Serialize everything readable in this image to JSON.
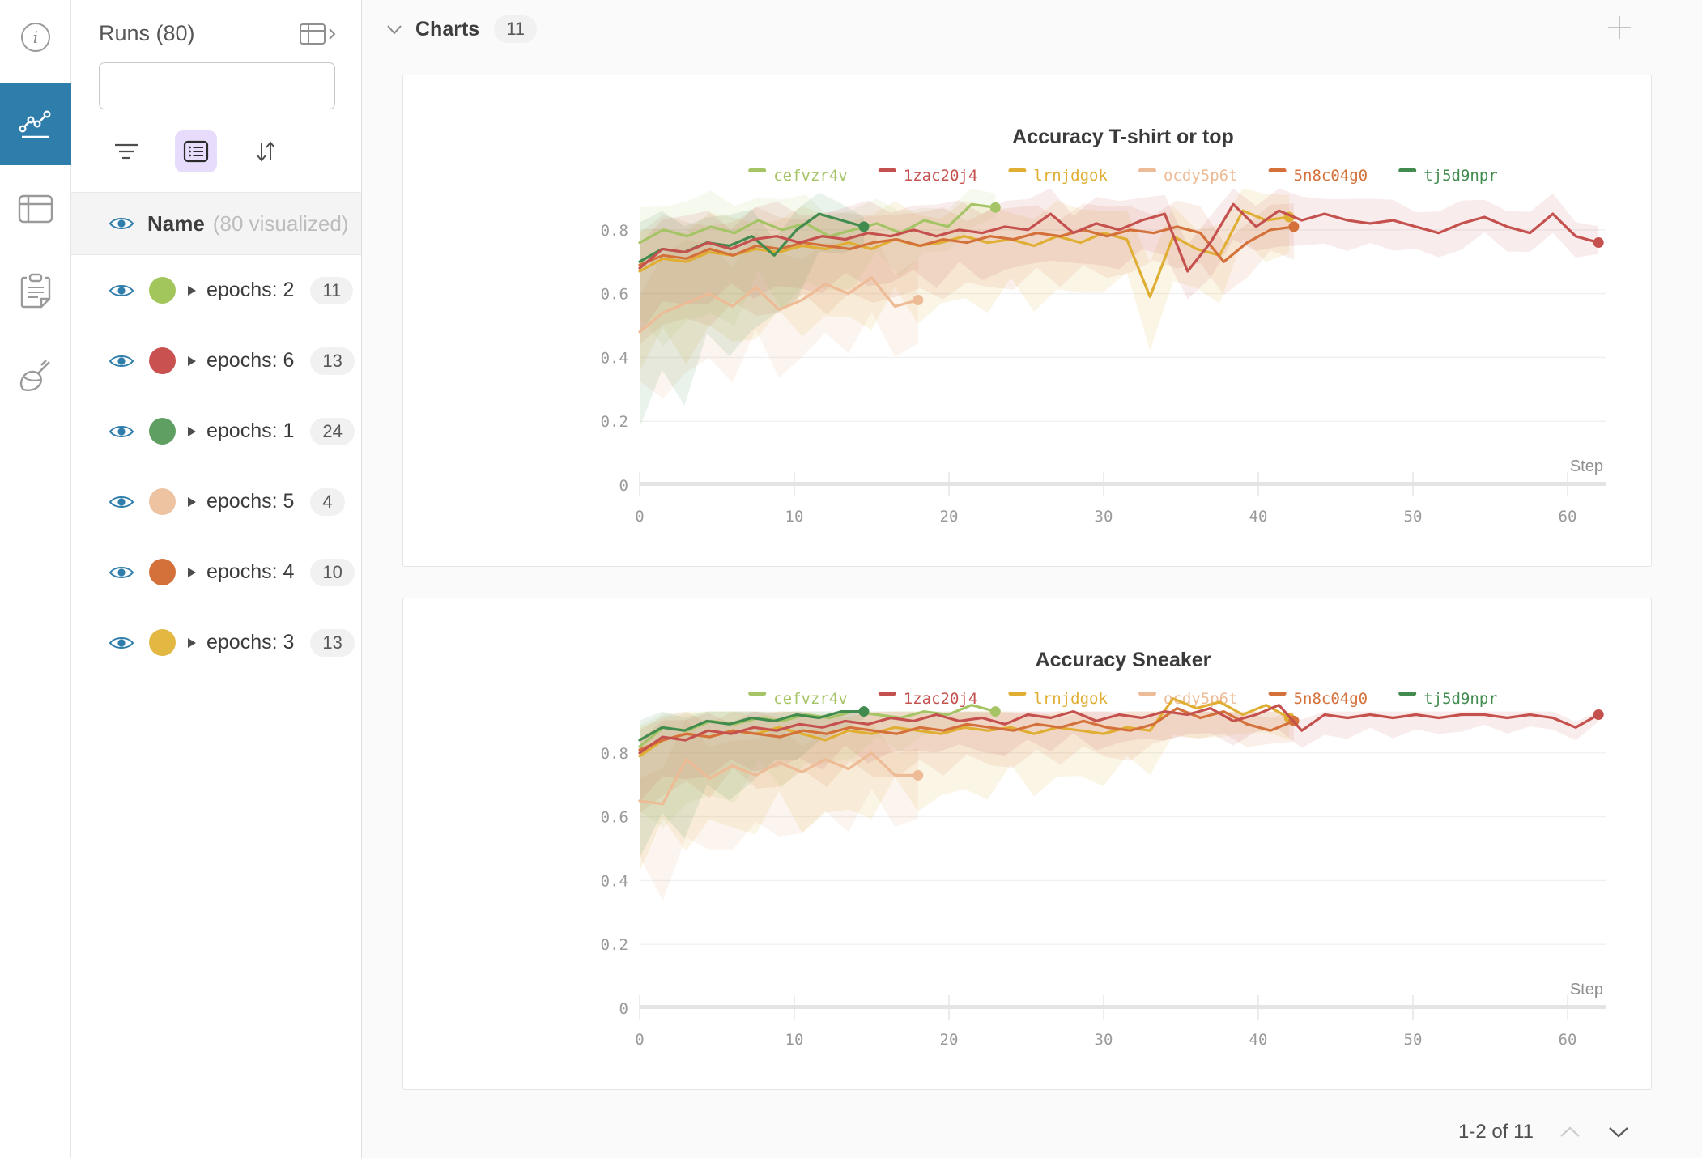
{
  "colors": {
    "accent_blue": "#2e7daa",
    "selected_control_bg": "#e7dcfb",
    "card_bg": "#ffffff",
    "main_bg": "#fafafa"
  },
  "icons": {
    "rail": [
      "info-icon",
      "line-chart-icon",
      "table-icon",
      "clipboard-icon",
      "broom-icon"
    ],
    "rail_selected": "line-chart-icon",
    "other": [
      "search-icon",
      "filter-icon",
      "list-view-icon",
      "sort-icon",
      "table-expand-icon",
      "eye-icon",
      "caret-right-icon",
      "chevron-down-icon",
      "plus-icon",
      "chevron-up-icon",
      "chevron-down-pager-icon"
    ]
  },
  "runs_panel": {
    "title": "Runs (80)",
    "search": {
      "placeholder": ""
    },
    "visualized_row": {
      "label": "Name",
      "note": "(80 visualized)"
    },
    "rows": [
      {
        "label": "epochs: 2",
        "count": "11",
        "color": "#a3c65c"
      },
      {
        "label": "epochs: 6",
        "count": "13",
        "color": "#c9514f"
      },
      {
        "label": "epochs: 1",
        "count": "24",
        "color": "#5f9f62"
      },
      {
        "label": "epochs: 5",
        "count": "4",
        "color": "#eec3a2"
      },
      {
        "label": "epochs: 4",
        "count": "10",
        "color": "#d4713a"
      },
      {
        "label": "epochs: 3",
        "count": "13",
        "color": "#e2b842"
      }
    ]
  },
  "charts_header": {
    "label": "Charts",
    "count": "11"
  },
  "pagination": {
    "label": "1-2 of 11"
  },
  "chart_data": [
    {
      "type": "line",
      "title": "Accuracy T-shirt or top",
      "xlabel": "Step",
      "x_ticks": [
        0,
        10,
        20,
        30,
        40,
        50,
        60
      ],
      "y_ticks": [
        0.8,
        0.6,
        0.4,
        0.2,
        0
      ],
      "xlim": [
        0,
        62.5
      ],
      "ylim": [
        0,
        0.93
      ],
      "grid": true,
      "legend_position": "top",
      "series": [
        {
          "name": "cefvzr4v",
          "color": "#a5c465",
          "x_max": 23,
          "y": [
            0.76,
            0.8,
            0.78,
            0.81,
            0.79,
            0.83,
            0.8,
            0.82,
            0.78,
            0.8,
            0.82,
            0.79,
            0.83,
            0.81,
            0.88,
            0.87
          ],
          "band": [
            0.3,
            0.04,
            0.1,
            0.04
          ]
        },
        {
          "name": "1zac20j4",
          "color": "#c5514e",
          "x_max": 62,
          "y": [
            0.68,
            0.74,
            0.73,
            0.76,
            0.74,
            0.77,
            0.78,
            0.76,
            0.78,
            0.77,
            0.79,
            0.78,
            0.8,
            0.78,
            0.8,
            0.79,
            0.81,
            0.8,
            0.85,
            0.79,
            0.82,
            0.8,
            0.83,
            0.85,
            0.67,
            0.76,
            0.88,
            0.81,
            0.86,
            0.83,
            0.85,
            0.83,
            0.82,
            0.83,
            0.81,
            0.79,
            0.82,
            0.84,
            0.81,
            0.79,
            0.85,
            0.78,
            0.76
          ],
          "band": [
            0.16,
            0.05,
            0.09,
            0.05
          ]
        },
        {
          "name": "lrnjdgok",
          "color": "#dfae33",
          "x_max": 42,
          "y": [
            0.67,
            0.71,
            0.7,
            0.73,
            0.72,
            0.74,
            0.73,
            0.75,
            0.74,
            0.76,
            0.74,
            0.77,
            0.75,
            0.76,
            0.78,
            0.76,
            0.77,
            0.75,
            0.78,
            0.76,
            0.79,
            0.77,
            0.59,
            0.78,
            0.74,
            0.72,
            0.86,
            0.83,
            0.84
          ],
          "band": [
            0.26,
            0.1,
            0.1,
            0.08
          ]
        },
        {
          "name": "ocdy5p6t",
          "color": "#edbb96",
          "x_max": 18,
          "y": [
            0.48,
            0.54,
            0.57,
            0.6,
            0.56,
            0.62,
            0.55,
            0.58,
            0.63,
            0.6,
            0.65,
            0.56,
            0.58
          ],
          "band": [
            0.22,
            0.12,
            0.16,
            0.12
          ]
        },
        {
          "name": "5n8c04g0",
          "color": "#d4713a",
          "x_max": 42.3,
          "y": [
            0.69,
            0.72,
            0.71,
            0.74,
            0.72,
            0.75,
            0.74,
            0.76,
            0.75,
            0.74,
            0.76,
            0.77,
            0.75,
            0.77,
            0.76,
            0.78,
            0.77,
            0.79,
            0.78,
            0.8,
            0.78,
            0.8,
            0.79,
            0.81,
            0.79,
            0.7,
            0.76,
            0.8,
            0.81
          ],
          "band": [
            0.2,
            0.08,
            0.1,
            0.06
          ]
        },
        {
          "name": "tj5d9npr",
          "color": "#418b4f",
          "x_max": 14.5,
          "y": [
            0.7,
            0.74,
            0.73,
            0.76,
            0.75,
            0.78,
            0.72,
            0.8,
            0.85,
            0.83,
            0.81
          ],
          "band": [
            0.45,
            0.05,
            0.1,
            0.04
          ]
        }
      ]
    },
    {
      "type": "line",
      "title": "Accuracy Sneaker",
      "xlabel": "Step",
      "x_ticks": [
        0,
        10,
        20,
        30,
        40,
        50,
        60
      ],
      "y_ticks": [
        0.8,
        0.6,
        0.4,
        0.2,
        0
      ],
      "xlim": [
        0,
        62.5
      ],
      "ylim": [
        0,
        0.93
      ],
      "grid": true,
      "legend_position": "top",
      "series": [
        {
          "name": "cefvzr4v",
          "color": "#a5c465",
          "x_max": 23,
          "y": [
            0.82,
            0.88,
            0.87,
            0.9,
            0.89,
            0.91,
            0.9,
            0.92,
            0.91,
            0.93,
            0.92,
            0.91,
            0.93,
            0.92,
            0.95,
            0.93
          ],
          "band": [
            0.26,
            0.02,
            0.06,
            0.02
          ]
        },
        {
          "name": "1zac20j4",
          "color": "#c5514e",
          "x_max": 62,
          "y": [
            0.8,
            0.85,
            0.84,
            0.87,
            0.86,
            0.88,
            0.87,
            0.89,
            0.88,
            0.9,
            0.89,
            0.91,
            0.9,
            0.92,
            0.9,
            0.91,
            0.89,
            0.92,
            0.91,
            0.93,
            0.9,
            0.92,
            0.91,
            0.93,
            0.92,
            0.94,
            0.9,
            0.92,
            0.95,
            0.87,
            0.92,
            0.91,
            0.92,
            0.91,
            0.92,
            0.91,
            0.92,
            0.92,
            0.91,
            0.92,
            0.91,
            0.88,
            0.92
          ],
          "band": [
            0.12,
            0.03,
            0.05,
            0.02
          ]
        },
        {
          "name": "lrnjdgok",
          "color": "#dfae33",
          "x_max": 42,
          "y": [
            0.79,
            0.84,
            0.86,
            0.85,
            0.87,
            0.86,
            0.88,
            0.86,
            0.84,
            0.87,
            0.86,
            0.88,
            0.87,
            0.86,
            0.88,
            0.87,
            0.88,
            0.86,
            0.88,
            0.87,
            0.86,
            0.88,
            0.87,
            0.97,
            0.94,
            0.96,
            0.92,
            0.95,
            0.91
          ],
          "band": [
            0.3,
            0.06,
            0.07,
            0.04
          ]
        },
        {
          "name": "ocdy5p6t",
          "color": "#edbb96",
          "x_max": 18,
          "y": [
            0.65,
            0.64,
            0.78,
            0.72,
            0.76,
            0.73,
            0.77,
            0.74,
            0.78,
            0.75,
            0.8,
            0.73,
            0.73
          ],
          "band": [
            0.25,
            0.12,
            0.1,
            0.08
          ]
        },
        {
          "name": "5n8c04g0",
          "color": "#d4713a",
          "x_max": 42.3,
          "y": [
            0.81,
            0.84,
            0.86,
            0.85,
            0.87,
            0.86,
            0.85,
            0.87,
            0.86,
            0.88,
            0.87,
            0.86,
            0.88,
            0.87,
            0.89,
            0.88,
            0.87,
            0.89,
            0.88,
            0.9,
            0.88,
            0.87,
            0.89,
            0.94,
            0.91,
            0.93,
            0.89,
            0.87,
            0.9
          ],
          "band": [
            0.16,
            0.05,
            0.06,
            0.03
          ]
        },
        {
          "name": "tj5d9npr",
          "color": "#418b4f",
          "x_max": 14.5,
          "y": [
            0.84,
            0.88,
            0.87,
            0.9,
            0.89,
            0.91,
            0.9,
            0.92,
            0.91,
            0.93,
            0.93
          ],
          "band": [
            0.32,
            0.02,
            0.05,
            0.02
          ]
        }
      ]
    }
  ]
}
